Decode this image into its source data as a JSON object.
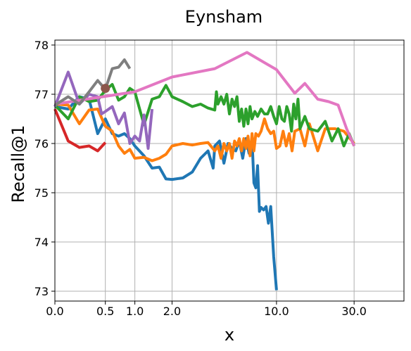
{
  "chart_data": {
    "type": "line",
    "title": "Eynsham",
    "xlabel": "x",
    "ylabel": "Recall@1",
    "grid": true,
    "x_scale": "symlog",
    "xlim": [
      0,
      60
    ],
    "ylim": [
      72.8,
      78.1
    ],
    "x_ticks": [
      {
        "value": 0.0,
        "label": "0.0"
      },
      {
        "value": 0.5,
        "label": "0.5"
      },
      {
        "value": 1.0,
        "label": "1.0"
      },
      {
        "value": 2.0,
        "label": "2.0"
      },
      {
        "value": 10.0,
        "label": "10.0"
      },
      {
        "value": 30.0,
        "label": "30.0"
      }
    ],
    "y_ticks": [
      {
        "value": 73,
        "label": "73"
      },
      {
        "value": 74,
        "label": "74"
      },
      {
        "value": 75,
        "label": "75"
      },
      {
        "value": 76,
        "label": "76"
      },
      {
        "value": 77,
        "label": "77"
      },
      {
        "value": 78,
        "label": "78"
      }
    ],
    "series": [
      {
        "color": "#1f77b4",
        "points": [
          [
            0,
            76.75
          ],
          [
            0.1,
            76.7
          ],
          [
            0.2,
            76.95
          ],
          [
            0.3,
            76.9
          ],
          [
            0.4,
            76.2
          ],
          [
            0.5,
            76.5
          ],
          [
            0.6,
            76.2
          ],
          [
            0.7,
            76.15
          ],
          [
            0.8,
            76.2
          ],
          [
            0.9,
            76.1
          ],
          [
            1.0,
            75.95
          ],
          [
            1.2,
            75.75
          ],
          [
            1.4,
            75.5
          ],
          [
            1.6,
            75.52
          ],
          [
            1.8,
            75.28
          ],
          [
            2.0,
            75.27
          ],
          [
            2.4,
            75.3
          ],
          [
            2.8,
            75.42
          ],
          [
            3.2,
            75.7
          ],
          [
            3.6,
            75.85
          ],
          [
            3.9,
            75.5
          ],
          [
            4.0,
            75.95
          ],
          [
            4.3,
            76.05
          ],
          [
            4.6,
            75.6
          ],
          [
            4.9,
            76.0
          ],
          [
            5.2,
            75.9
          ],
          [
            5.5,
            75.85
          ],
          [
            5.8,
            76.05
          ],
          [
            6.1,
            75.7
          ],
          [
            6.4,
            76.1
          ],
          [
            6.7,
            75.8
          ],
          [
            7.0,
            76.1
          ],
          [
            7.2,
            75.2
          ],
          [
            7.4,
            75.1
          ],
          [
            7.6,
            75.55
          ],
          [
            7.8,
            74.62
          ],
          [
            8.0,
            74.7
          ],
          [
            8.3,
            74.65
          ],
          [
            8.6,
            74.72
          ],
          [
            8.9,
            74.38
          ],
          [
            9.2,
            74.72
          ],
          [
            9.6,
            73.7
          ],
          [
            10.0,
            73.02
          ]
        ]
      },
      {
        "color": "#ff7f0e",
        "points": [
          [
            0,
            76.8
          ],
          [
            0.1,
            76.78
          ],
          [
            0.2,
            76.4
          ],
          [
            0.3,
            76.68
          ],
          [
            0.4,
            76.7
          ],
          [
            0.5,
            76.35
          ],
          [
            0.6,
            76.25
          ],
          [
            0.7,
            75.95
          ],
          [
            0.8,
            75.8
          ],
          [
            0.9,
            75.88
          ],
          [
            1.0,
            75.7
          ],
          [
            1.2,
            75.72
          ],
          [
            1.4,
            75.65
          ],
          [
            1.6,
            75.7
          ],
          [
            1.8,
            75.78
          ],
          [
            2.0,
            75.95
          ],
          [
            2.4,
            76.0
          ],
          [
            2.8,
            75.97
          ],
          [
            3.2,
            76.0
          ],
          [
            3.6,
            76.02
          ],
          [
            4.0,
            75.85
          ],
          [
            4.2,
            75.95
          ],
          [
            4.4,
            75.7
          ],
          [
            4.6,
            76.0
          ],
          [
            4.8,
            75.85
          ],
          [
            5.0,
            76.0
          ],
          [
            5.2,
            75.7
          ],
          [
            5.4,
            76.05
          ],
          [
            5.6,
            75.95
          ],
          [
            5.8,
            76.1
          ],
          [
            6.0,
            75.85
          ],
          [
            6.2,
            76.1
          ],
          [
            6.4,
            75.9
          ],
          [
            6.6,
            76.15
          ],
          [
            6.8,
            75.75
          ],
          [
            7.0,
            76.2
          ],
          [
            7.2,
            75.85
          ],
          [
            7.4,
            76.2
          ],
          [
            7.7,
            76.15
          ],
          [
            8.0,
            76.25
          ],
          [
            8.4,
            76.5
          ],
          [
            8.8,
            76.3
          ],
          [
            9.2,
            76.2
          ],
          [
            9.6,
            76.25
          ],
          [
            10.0,
            75.9
          ],
          [
            10.5,
            75.95
          ],
          [
            11.0,
            76.25
          ],
          [
            11.5,
            75.95
          ],
          [
            12.0,
            76.2
          ],
          [
            12.5,
            75.85
          ],
          [
            13.0,
            76.25
          ],
          [
            14.0,
            76.3
          ],
          [
            15.0,
            75.95
          ],
          [
            16.0,
            76.4
          ],
          [
            18.0,
            75.85
          ],
          [
            20.0,
            76.3
          ],
          [
            23.0,
            76.3
          ],
          [
            26.0,
            76.25
          ],
          [
            30.0,
            76.0
          ]
        ]
      },
      {
        "color": "#2ca02c",
        "points": [
          [
            0,
            76.78
          ],
          [
            0.1,
            76.5
          ],
          [
            0.2,
            76.95
          ],
          [
            0.3,
            76.85
          ],
          [
            0.4,
            76.88
          ],
          [
            0.5,
            77.08
          ],
          [
            0.6,
            77.2
          ],
          [
            0.7,
            76.88
          ],
          [
            0.8,
            76.95
          ],
          [
            0.9,
            77.12
          ],
          [
            1.0,
            77.05
          ],
          [
            1.2,
            76.38
          ],
          [
            1.4,
            76.9
          ],
          [
            1.6,
            76.95
          ],
          [
            1.8,
            77.18
          ],
          [
            2.0,
            76.95
          ],
          [
            2.4,
            76.85
          ],
          [
            2.8,
            76.75
          ],
          [
            3.2,
            76.8
          ],
          [
            3.6,
            76.72
          ],
          [
            4.0,
            76.68
          ],
          [
            4.1,
            77.05
          ],
          [
            4.2,
            76.8
          ],
          [
            4.4,
            76.95
          ],
          [
            4.6,
            76.8
          ],
          [
            4.8,
            77.0
          ],
          [
            5.0,
            76.6
          ],
          [
            5.2,
            76.9
          ],
          [
            5.4,
            76.75
          ],
          [
            5.6,
            76.95
          ],
          [
            5.8,
            76.45
          ],
          [
            6.0,
            76.7
          ],
          [
            6.2,
            76.35
          ],
          [
            6.4,
            76.7
          ],
          [
            6.6,
            76.4
          ],
          [
            6.8,
            76.75
          ],
          [
            7.0,
            76.5
          ],
          [
            7.3,
            76.65
          ],
          [
            7.6,
            76.55
          ],
          [
            8.0,
            76.7
          ],
          [
            8.4,
            76.6
          ],
          [
            8.8,
            76.6
          ],
          [
            9.2,
            76.75
          ],
          [
            9.6,
            76.55
          ],
          [
            10.0,
            76.4
          ],
          [
            10.4,
            76.75
          ],
          [
            10.8,
            76.5
          ],
          [
            11.2,
            76.45
          ],
          [
            11.6,
            76.75
          ],
          [
            12.0,
            76.6
          ],
          [
            12.4,
            76.25
          ],
          [
            12.8,
            76.8
          ],
          [
            13.2,
            76.5
          ],
          [
            13.6,
            76.9
          ],
          [
            14.0,
            76.3
          ],
          [
            15.0,
            76.55
          ],
          [
            16.0,
            76.3
          ],
          [
            18.0,
            76.25
          ],
          [
            20.0,
            76.45
          ],
          [
            22.0,
            76.05
          ],
          [
            24.0,
            76.3
          ],
          [
            26.0,
            75.95
          ],
          [
            28.0,
            76.2
          ],
          [
            30.0,
            75.95
          ]
        ]
      },
      {
        "color": "#d62728",
        "points": [
          [
            0,
            76.7
          ],
          [
            0.1,
            76.05
          ],
          [
            0.2,
            75.92
          ],
          [
            0.3,
            75.95
          ],
          [
            0.4,
            75.85
          ],
          [
            0.5,
            76.02
          ]
        ]
      },
      {
        "color": "#9467bd",
        "points": [
          [
            0,
            76.75
          ],
          [
            0.1,
            77.45
          ],
          [
            0.2,
            76.8
          ],
          [
            0.3,
            77.0
          ],
          [
            0.4,
            76.95
          ],
          [
            0.45,
            76.6
          ],
          [
            0.5,
            76.65
          ],
          [
            0.6,
            76.75
          ],
          [
            0.7,
            76.4
          ],
          [
            0.8,
            76.62
          ],
          [
            0.9,
            76.0
          ],
          [
            1.0,
            76.15
          ],
          [
            1.1,
            76.05
          ],
          [
            1.2,
            76.58
          ],
          [
            1.3,
            75.9
          ],
          [
            1.4,
            76.7
          ]
        ]
      },
      {
        "color": "#e377c2",
        "points": [
          [
            0,
            76.8
          ],
          [
            1.0,
            77.05
          ],
          [
            2.0,
            77.35
          ],
          [
            4.0,
            77.52
          ],
          [
            6.5,
            77.85
          ],
          [
            10.0,
            77.5
          ],
          [
            13.0,
            77.02
          ],
          [
            15.0,
            77.22
          ],
          [
            18.0,
            76.9
          ],
          [
            21.0,
            76.85
          ],
          [
            24.0,
            76.78
          ],
          [
            27.0,
            76.3
          ],
          [
            30.0,
            75.95
          ]
        ]
      },
      {
        "color": "#7f7f7f",
        "points": [
          [
            0,
            76.78
          ],
          [
            0.1,
            76.95
          ],
          [
            0.2,
            76.8
          ],
          [
            0.3,
            77.05
          ],
          [
            0.4,
            77.28
          ],
          [
            0.5,
            77.1
          ],
          [
            0.6,
            77.52
          ],
          [
            0.7,
            77.55
          ],
          [
            0.8,
            77.7
          ],
          [
            0.9,
            77.52
          ]
        ]
      }
    ],
    "markers": [
      {
        "color": "#8c564b",
        "x": 0.5,
        "y": 77.12
      }
    ]
  }
}
